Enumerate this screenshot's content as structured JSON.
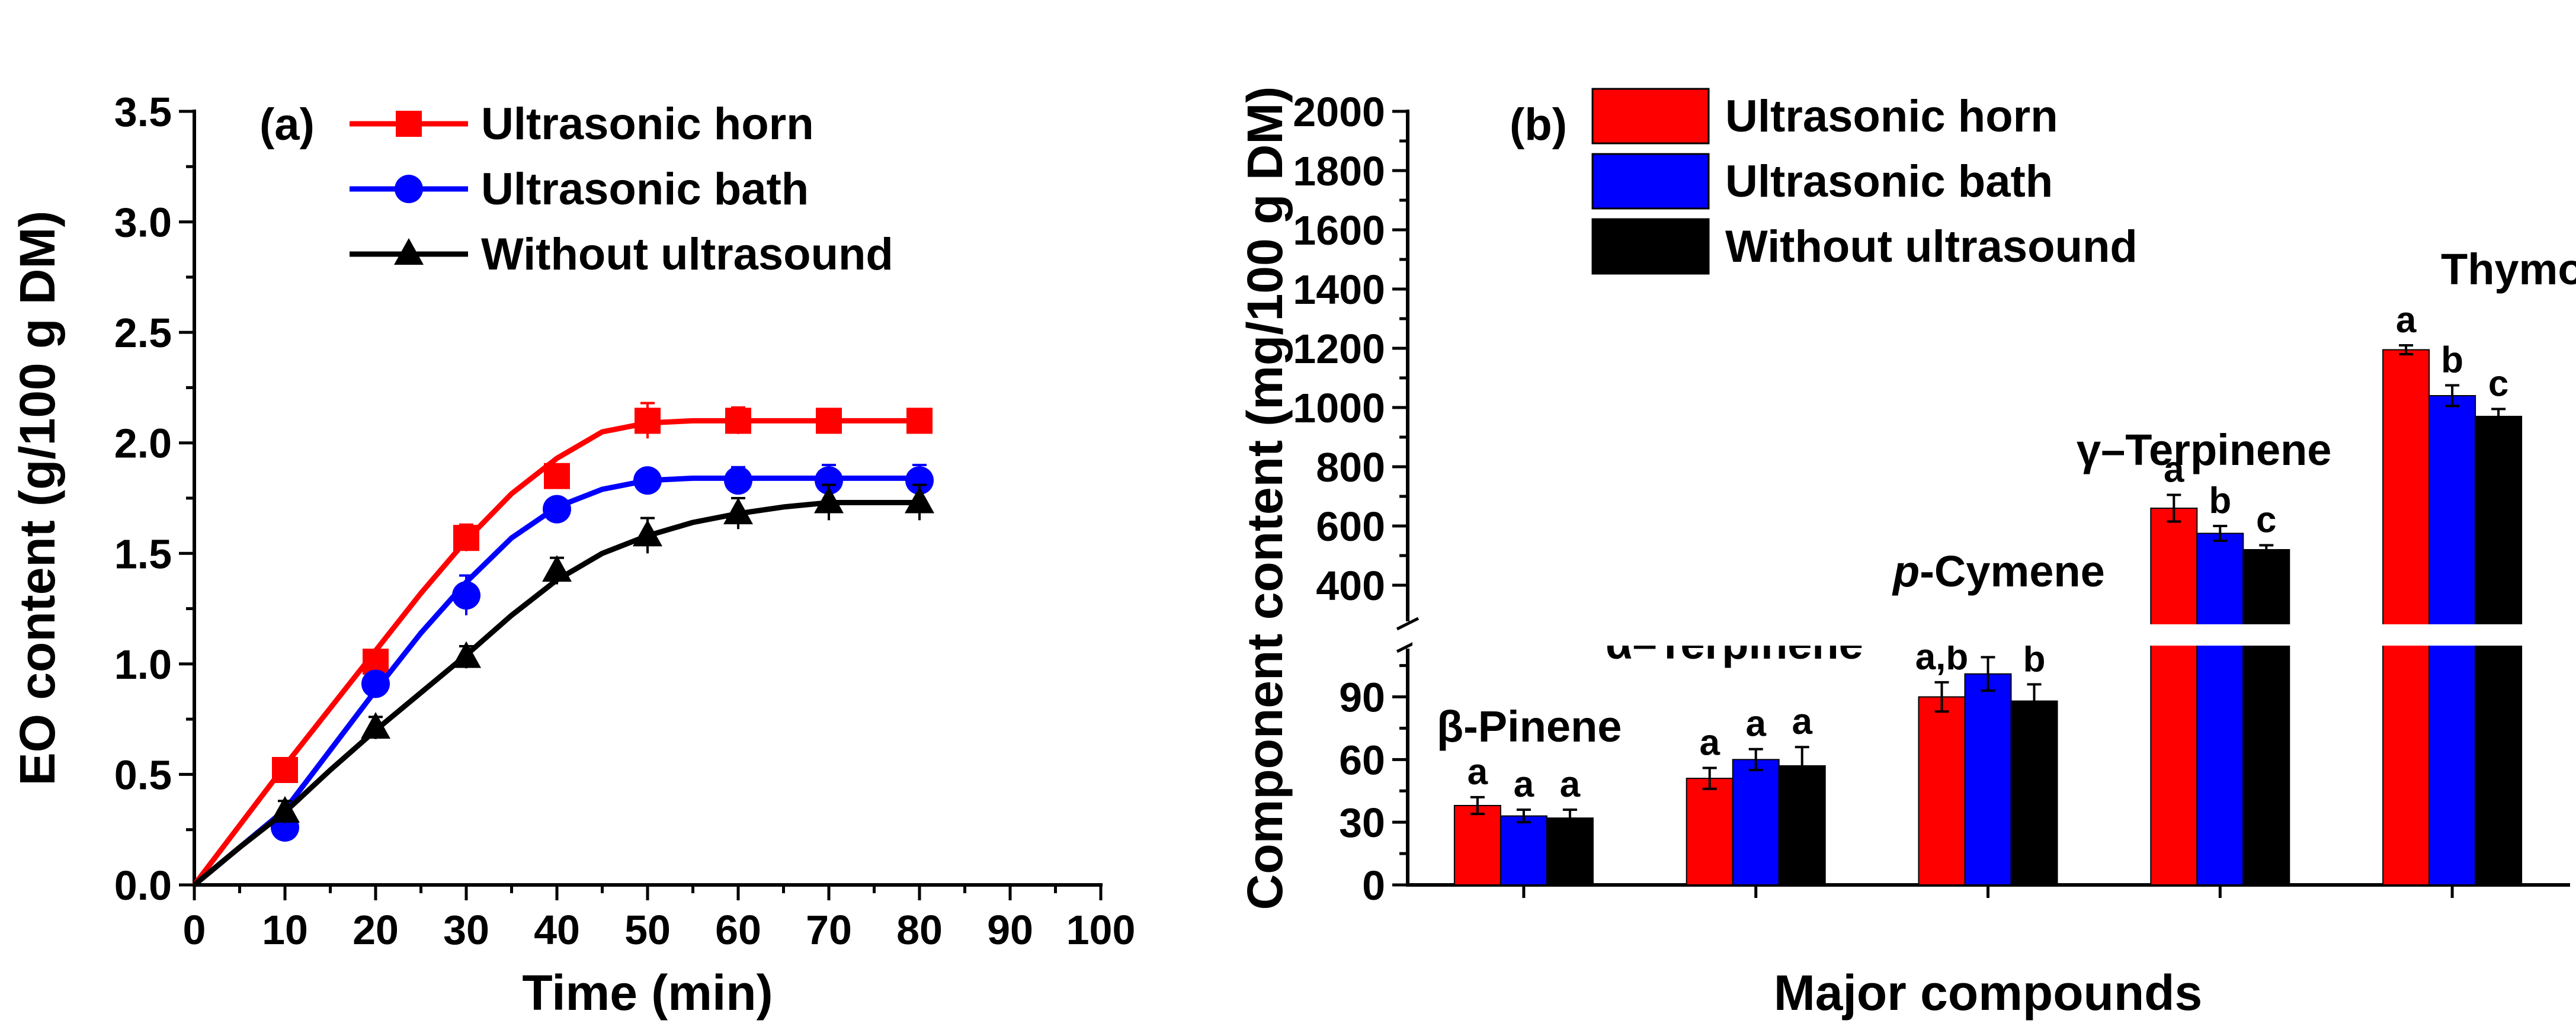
{
  "chart_data": [
    {
      "panel": "(a)",
      "type": "line",
      "xlabel": "Time (min)",
      "ylabel": "EO content (g/100 g DM)",
      "xlim": [
        0,
        100
      ],
      "ylim": [
        0,
        3.5
      ],
      "xticks": [
        "0",
        "10",
        "20",
        "30",
        "40",
        "50",
        "60",
        "70",
        "80",
        "90",
        "100"
      ],
      "yticks": [
        "0.0",
        "0.5",
        "1.0",
        "1.5",
        "2.0",
        "2.5",
        "3.0",
        "3.5"
      ],
      "legend": [
        "Ultrasonic horn",
        "Ultrasonic bath",
        "Without ultrasound"
      ],
      "series": [
        {
          "name": "Ultrasonic horn",
          "color": "#ff0000",
          "marker": "square",
          "x": [
            10,
            20,
            30,
            40,
            50,
            60,
            70,
            80
          ],
          "y": [
            0.52,
            1.01,
            1.57,
            1.85,
            2.1,
            2.1,
            2.1,
            2.1
          ],
          "err": [
            0.04,
            0.05,
            0.06,
            0.05,
            0.08,
            0.06,
            0.05,
            0.05
          ],
          "curve_x": [
            0,
            5,
            10,
            15,
            20,
            25,
            30,
            35,
            40,
            45,
            50,
            55,
            60,
            65,
            70,
            75,
            80
          ],
          "curve_y": [
            0,
            0.27,
            0.54,
            0.8,
            1.06,
            1.32,
            1.56,
            1.77,
            1.93,
            2.05,
            2.09,
            2.1,
            2.1,
            2.1,
            2.1,
            2.1,
            2.1
          ]
        },
        {
          "name": "Ultrasonic bath",
          "color": "#0000ff",
          "marker": "circle",
          "x": [
            10,
            20,
            30,
            40,
            50,
            60,
            70,
            80
          ],
          "y": [
            0.26,
            0.91,
            1.31,
            1.7,
            1.83,
            1.83,
            1.83,
            1.83
          ],
          "err": [
            0.04,
            0.05,
            0.09,
            0.05,
            0.03,
            0.06,
            0.07,
            0.07
          ],
          "curve_x": [
            0,
            5,
            10,
            15,
            20,
            25,
            30,
            35,
            40,
            45,
            50,
            55,
            60,
            65,
            70,
            75,
            80
          ],
          "curve_y": [
            0,
            0.17,
            0.34,
            0.61,
            0.88,
            1.14,
            1.37,
            1.57,
            1.71,
            1.79,
            1.83,
            1.84,
            1.84,
            1.84,
            1.84,
            1.84,
            1.84
          ]
        },
        {
          "name": "Without ultrasound",
          "color": "#000000",
          "marker": "triangle",
          "x": [
            10,
            20,
            30,
            40,
            50,
            60,
            70,
            80
          ],
          "y": [
            0.33,
            0.71,
            1.03,
            1.42,
            1.58,
            1.68,
            1.73,
            1.73
          ],
          "err": [
            0.05,
            0.05,
            0.05,
            0.06,
            0.08,
            0.07,
            0.08,
            0.08
          ],
          "curve_x": [
            0,
            5,
            10,
            15,
            20,
            25,
            30,
            35,
            40,
            45,
            50,
            55,
            60,
            65,
            70,
            75,
            80
          ],
          "curve_y": [
            0,
            0.17,
            0.33,
            0.52,
            0.7,
            0.87,
            1.04,
            1.22,
            1.38,
            1.5,
            1.58,
            1.64,
            1.68,
            1.71,
            1.73,
            1.73,
            1.73
          ]
        }
      ]
    },
    {
      "panel": "(b)",
      "type": "bar",
      "xlabel": "Major compounds",
      "ylabel": "Component content (mg/100 g DM)",
      "axis_break": true,
      "lower_ylim": [
        0,
        110
      ],
      "upper_ylim": [
        300,
        2000
      ],
      "lower_yticks": [
        "0",
        "30",
        "60",
        "90"
      ],
      "upper_yticks": [
        "400",
        "600",
        "800",
        "1000",
        "1200",
        "1400",
        "1600",
        "1800",
        "2000"
      ],
      "legend": [
        "Ultrasonic horn",
        "Ultrasonic bath",
        "Without ultrasound"
      ],
      "colors": [
        "#ff0000",
        "#0000ff",
        "#000000"
      ],
      "categories": [
        {
          "name_prefix": "",
          "name": "β-Pinene",
          "segment": "lower",
          "values": [
            38,
            33,
            32
          ],
          "err": [
            4,
            3,
            4
          ],
          "sig": [
            "a",
            "a",
            "a"
          ]
        },
        {
          "name_prefix": "",
          "name": "α–Terpinene",
          "segment": "lower",
          "values": [
            51,
            60,
            57
          ],
          "err": [
            5,
            5,
            9
          ],
          "sig": [
            "a",
            "a",
            "a"
          ]
        },
        {
          "name_prefix": "p",
          "name": "-Cymene",
          "segment": "lower",
          "values": [
            90,
            101,
            88
          ],
          "err": [
            7,
            8,
            8
          ],
          "sig": [
            "a,b",
            "a",
            "b"
          ]
        },
        {
          "name_prefix": "",
          "name": "γ–Terpinene",
          "segment": "upper",
          "values": [
            660,
            575,
            520
          ],
          "err": [
            45,
            25,
            15
          ],
          "sig": [
            "a",
            "b",
            "c"
          ]
        },
        {
          "name_prefix": "",
          "name": "Thymol",
          "segment": "upper",
          "values": [
            1195,
            1040,
            970
          ],
          "err": [
            15,
            35,
            25
          ],
          "sig": [
            "a",
            "b",
            "c"
          ]
        }
      ]
    }
  ]
}
